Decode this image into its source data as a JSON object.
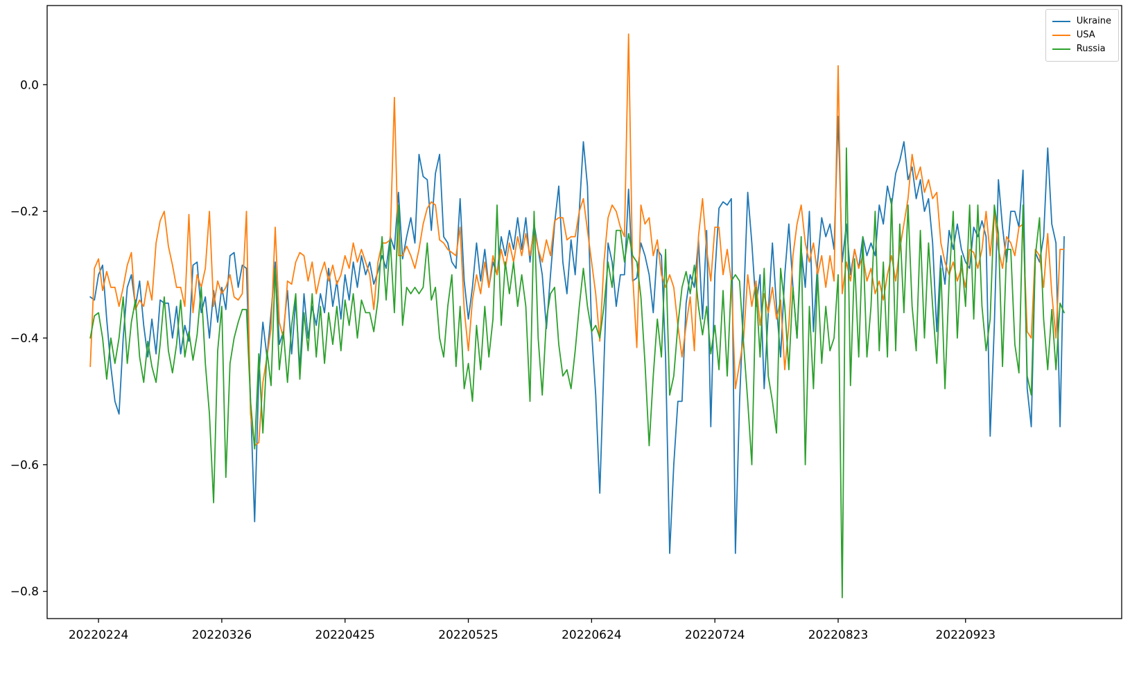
{
  "figure": {
    "background": "#ffffff"
  },
  "chart_data": {
    "type": "line",
    "title": "",
    "xlabel": "",
    "ylabel": "",
    "grid": false,
    "x_start_date_est": "20220222",
    "x_frequency": "daily",
    "x_ticks": {
      "labels": [
        "20220224",
        "20220326",
        "20220425",
        "20220525",
        "20220624",
        "20220724",
        "20220823",
        "20220923"
      ],
      "day_indices": [
        2,
        32,
        62,
        92,
        122,
        152,
        182,
        213
      ]
    },
    "y_ticks": {
      "labels": [
        "0.0",
        "−0.2",
        "−0.4",
        "−0.6",
        "−0.8"
      ],
      "values": [
        0.0,
        -0.2,
        -0.4,
        -0.6,
        -0.8
      ]
    },
    "xlim_day_indices": [
      -10.5,
      251
    ],
    "ylim": [
      -0.843,
      0.125
    ],
    "axis_color": "#000000",
    "line_width": 1.8,
    "legend": {
      "location": "upper right",
      "entries": [
        {
          "label": "Ukraine",
          "color": "#1f77b4"
        },
        {
          "label": "USA",
          "color": "#ff7f0e"
        },
        {
          "label": "Russia",
          "color": "#2ca02c"
        }
      ]
    },
    "series": [
      {
        "name": "Ukraine",
        "color": "#1f77b4",
        "values": [
          -0.335,
          -0.34,
          -0.3,
          -0.285,
          -0.37,
          -0.445,
          -0.5,
          -0.52,
          -0.4,
          -0.32,
          -0.3,
          -0.35,
          -0.31,
          -0.38,
          -0.43,
          -0.37,
          -0.425,
          -0.34,
          -0.345,
          -0.345,
          -0.4,
          -0.35,
          -0.425,
          -0.38,
          -0.405,
          -0.285,
          -0.28,
          -0.36,
          -0.335,
          -0.4,
          -0.325,
          -0.375,
          -0.32,
          -0.355,
          -0.27,
          -0.265,
          -0.32,
          -0.285,
          -0.29,
          -0.5,
          -0.69,
          -0.46,
          -0.375,
          -0.43,
          -0.36,
          -0.28,
          -0.41,
          -0.39,
          -0.325,
          -0.425,
          -0.34,
          -0.45,
          -0.33,
          -0.4,
          -0.35,
          -0.38,
          -0.33,
          -0.36,
          -0.29,
          -0.35,
          -0.31,
          -0.37,
          -0.3,
          -0.34,
          -0.28,
          -0.32,
          -0.27,
          -0.3,
          -0.28,
          -0.315,
          -0.295,
          -0.27,
          -0.29,
          -0.24,
          -0.26,
          -0.17,
          -0.275,
          -0.24,
          -0.21,
          -0.25,
          -0.11,
          -0.145,
          -0.15,
          -0.23,
          -0.14,
          -0.11,
          -0.24,
          -0.25,
          -0.28,
          -0.29,
          -0.18,
          -0.31,
          -0.37,
          -0.32,
          -0.25,
          -0.31,
          -0.26,
          -0.32,
          -0.28,
          -0.3,
          -0.24,
          -0.27,
          -0.23,
          -0.26,
          -0.21,
          -0.26,
          -0.21,
          -0.28,
          -0.22,
          -0.26,
          -0.3,
          -0.385,
          -0.3,
          -0.22,
          -0.16,
          -0.28,
          -0.33,
          -0.245,
          -0.3,
          -0.2,
          -0.09,
          -0.16,
          -0.39,
          -0.49,
          -0.645,
          -0.44,
          -0.25,
          -0.28,
          -0.35,
          -0.3,
          -0.3,
          -0.165,
          -0.31,
          -0.305,
          -0.25,
          -0.27,
          -0.3,
          -0.36,
          -0.26,
          -0.27,
          -0.43,
          -0.74,
          -0.6,
          -0.5,
          -0.5,
          -0.345,
          -0.3,
          -0.32,
          -0.245,
          -0.37,
          -0.23,
          -0.54,
          -0.3,
          -0.195,
          -0.185,
          -0.19,
          -0.18,
          -0.74,
          -0.5,
          -0.345,
          -0.17,
          -0.25,
          -0.35,
          -0.3,
          -0.48,
          -0.36,
          -0.25,
          -0.35,
          -0.43,
          -0.3,
          -0.22,
          -0.32,
          -0.4,
          -0.26,
          -0.32,
          -0.2,
          -0.39,
          -0.28,
          -0.21,
          -0.24,
          -0.22,
          -0.26,
          -0.05,
          -0.28,
          -0.22,
          -0.3,
          -0.26,
          -0.29,
          -0.24,
          -0.27,
          -0.25,
          -0.27,
          -0.19,
          -0.22,
          -0.16,
          -0.19,
          -0.14,
          -0.12,
          -0.09,
          -0.15,
          -0.13,
          -0.18,
          -0.15,
          -0.2,
          -0.18,
          -0.25,
          -0.39,
          -0.27,
          -0.315,
          -0.23,
          -0.26,
          -0.22,
          -0.26,
          -0.28,
          -0.29,
          -0.225,
          -0.24,
          -0.215,
          -0.24,
          -0.555,
          -0.38,
          -0.15,
          -0.225,
          -0.28,
          -0.2,
          -0.2,
          -0.225,
          -0.135,
          -0.48,
          -0.54,
          -0.265,
          -0.28,
          -0.24,
          -0.1,
          -0.22,
          -0.25,
          -0.54,
          -0.24
        ]
      },
      {
        "name": "USA",
        "color": "#ff7f0e",
        "values": [
          -0.445,
          -0.29,
          -0.275,
          -0.325,
          -0.295,
          -0.32,
          -0.32,
          -0.35,
          -0.32,
          -0.285,
          -0.265,
          -0.355,
          -0.34,
          -0.35,
          -0.31,
          -0.34,
          -0.25,
          -0.215,
          -0.2,
          -0.255,
          -0.285,
          -0.32,
          -0.32,
          -0.35,
          -0.205,
          -0.36,
          -0.3,
          -0.32,
          -0.29,
          -0.2,
          -0.35,
          -0.31,
          -0.33,
          -0.32,
          -0.3,
          -0.335,
          -0.34,
          -0.33,
          -0.2,
          -0.52,
          -0.57,
          -0.565,
          -0.47,
          -0.43,
          -0.385,
          -0.225,
          -0.375,
          -0.4,
          -0.31,
          -0.315,
          -0.28,
          -0.265,
          -0.27,
          -0.31,
          -0.28,
          -0.33,
          -0.3,
          -0.28,
          -0.31,
          -0.285,
          -0.315,
          -0.3,
          -0.27,
          -0.29,
          -0.25,
          -0.28,
          -0.26,
          -0.28,
          -0.3,
          -0.355,
          -0.28,
          -0.25,
          -0.25,
          -0.245,
          -0.02,
          -0.27,
          -0.27,
          -0.255,
          -0.27,
          -0.29,
          -0.26,
          -0.22,
          -0.195,
          -0.185,
          -0.19,
          -0.245,
          -0.25,
          -0.26,
          -0.265,
          -0.27,
          -0.225,
          -0.355,
          -0.42,
          -0.34,
          -0.3,
          -0.33,
          -0.28,
          -0.32,
          -0.27,
          -0.3,
          -0.26,
          -0.29,
          -0.25,
          -0.28,
          -0.24,
          -0.27,
          -0.235,
          -0.27,
          -0.23,
          -0.26,
          -0.28,
          -0.245,
          -0.27,
          -0.215,
          -0.21,
          -0.21,
          -0.245,
          -0.24,
          -0.24,
          -0.2,
          -0.18,
          -0.23,
          -0.28,
          -0.33,
          -0.405,
          -0.28,
          -0.21,
          -0.19,
          -0.2,
          -0.225,
          -0.24,
          0.08,
          -0.3,
          -0.415,
          -0.19,
          -0.22,
          -0.21,
          -0.27,
          -0.245,
          -0.3,
          -0.32,
          -0.3,
          -0.32,
          -0.38,
          -0.43,
          -0.38,
          -0.335,
          -0.42,
          -0.24,
          -0.18,
          -0.26,
          -0.31,
          -0.225,
          -0.225,
          -0.3,
          -0.26,
          -0.31,
          -0.48,
          -0.44,
          -0.4,
          -0.3,
          -0.35,
          -0.31,
          -0.38,
          -0.33,
          -0.36,
          -0.32,
          -0.37,
          -0.34,
          -0.45,
          -0.38,
          -0.27,
          -0.22,
          -0.19,
          -0.25,
          -0.28,
          -0.25,
          -0.3,
          -0.27,
          -0.32,
          -0.27,
          -0.31,
          0.03,
          -0.33,
          -0.28,
          -0.31,
          -0.26,
          -0.29,
          -0.27,
          -0.31,
          -0.29,
          -0.33,
          -0.31,
          -0.34,
          -0.3,
          -0.27,
          -0.31,
          -0.26,
          -0.22,
          -0.18,
          -0.11,
          -0.15,
          -0.13,
          -0.17,
          -0.15,
          -0.18,
          -0.17,
          -0.25,
          -0.28,
          -0.3,
          -0.28,
          -0.31,
          -0.29,
          -0.32,
          -0.26,
          -0.265,
          -0.29,
          -0.26,
          -0.2,
          -0.27,
          -0.2,
          -0.26,
          -0.29,
          -0.24,
          -0.25,
          -0.27,
          -0.225,
          -0.22,
          -0.39,
          -0.4,
          -0.26,
          -0.27,
          -0.32,
          -0.235,
          -0.33,
          -0.4,
          -0.26,
          -0.26
        ]
      },
      {
        "name": "Russia",
        "color": "#2ca02c",
        "values": [
          -0.4,
          -0.365,
          -0.36,
          -0.4,
          -0.465,
          -0.4,
          -0.44,
          -0.4,
          -0.335,
          -0.44,
          -0.375,
          -0.34,
          -0.43,
          -0.47,
          -0.405,
          -0.445,
          -0.47,
          -0.41,
          -0.335,
          -0.42,
          -0.455,
          -0.41,
          -0.34,
          -0.43,
          -0.39,
          -0.435,
          -0.395,
          -0.32,
          -0.44,
          -0.52,
          -0.66,
          -0.42,
          -0.35,
          -0.62,
          -0.44,
          -0.4,
          -0.375,
          -0.355,
          -0.355,
          -0.5,
          -0.575,
          -0.425,
          -0.55,
          -0.42,
          -0.475,
          -0.29,
          -0.45,
          -0.39,
          -0.47,
          -0.38,
          -0.33,
          -0.465,
          -0.36,
          -0.42,
          -0.33,
          -0.43,
          -0.35,
          -0.44,
          -0.36,
          -0.41,
          -0.35,
          -0.42,
          -0.34,
          -0.38,
          -0.33,
          -0.4,
          -0.34,
          -0.36,
          -0.36,
          -0.39,
          -0.34,
          -0.24,
          -0.34,
          -0.245,
          -0.36,
          -0.19,
          -0.38,
          -0.32,
          -0.33,
          -0.32,
          -0.33,
          -0.32,
          -0.25,
          -0.34,
          -0.32,
          -0.4,
          -0.43,
          -0.35,
          -0.3,
          -0.445,
          -0.35,
          -0.48,
          -0.44,
          -0.5,
          -0.38,
          -0.45,
          -0.35,
          -0.43,
          -0.37,
          -0.19,
          -0.38,
          -0.28,
          -0.33,
          -0.28,
          -0.35,
          -0.3,
          -0.35,
          -0.5,
          -0.2,
          -0.4,
          -0.49,
          -0.37,
          -0.33,
          -0.32,
          -0.41,
          -0.46,
          -0.45,
          -0.48,
          -0.42,
          -0.35,
          -0.29,
          -0.35,
          -0.39,
          -0.38,
          -0.4,
          -0.35,
          -0.28,
          -0.32,
          -0.23,
          -0.23,
          -0.28,
          -0.235,
          -0.27,
          -0.28,
          -0.335,
          -0.44,
          -0.57,
          -0.46,
          -0.37,
          -0.43,
          -0.26,
          -0.49,
          -0.46,
          -0.38,
          -0.32,
          -0.295,
          -0.33,
          -0.285,
          -0.35,
          -0.395,
          -0.35,
          -0.425,
          -0.38,
          -0.45,
          -0.325,
          -0.46,
          -0.31,
          -0.3,
          -0.31,
          -0.41,
          -0.5,
          -0.6,
          -0.32,
          -0.43,
          -0.29,
          -0.46,
          -0.5,
          -0.55,
          -0.29,
          -0.35,
          -0.45,
          -0.32,
          -0.4,
          -0.24,
          -0.6,
          -0.35,
          -0.48,
          -0.3,
          -0.44,
          -0.35,
          -0.42,
          -0.4,
          -0.3,
          -0.81,
          -0.1,
          -0.475,
          -0.275,
          -0.43,
          -0.24,
          -0.43,
          -0.35,
          -0.2,
          -0.42,
          -0.28,
          -0.43,
          -0.18,
          -0.42,
          -0.22,
          -0.36,
          -0.19,
          -0.35,
          -0.42,
          -0.23,
          -0.4,
          -0.25,
          -0.35,
          -0.44,
          -0.29,
          -0.48,
          -0.31,
          -0.2,
          -0.4,
          -0.27,
          -0.35,
          -0.19,
          -0.37,
          -0.19,
          -0.35,
          -0.42,
          -0.37,
          -0.19,
          -0.235,
          -0.445,
          -0.26,
          -0.26,
          -0.41,
          -0.455,
          -0.19,
          -0.46,
          -0.49,
          -0.27,
          -0.21,
          -0.37,
          -0.45,
          -0.355,
          -0.45,
          -0.345,
          -0.36
        ]
      }
    ]
  }
}
